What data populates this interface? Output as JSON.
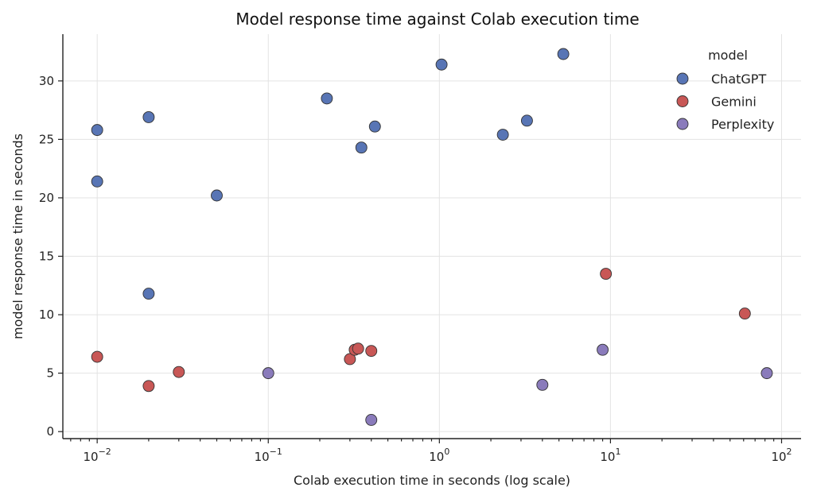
{
  "chart_data": {
    "type": "scatter",
    "title": "Model response time against Colab execution time",
    "xlabel": "Colab execution time in seconds  (log scale)",
    "ylabel": "model response time in seconds",
    "xscale": "log",
    "xlim": [
      0.0063,
      130
    ],
    "ylim": [
      -0.6,
      34
    ],
    "x_ticks": [
      {
        "value": 0.01,
        "base": "10",
        "exp": "−2"
      },
      {
        "value": 0.1,
        "base": "10",
        "exp": "−1"
      },
      {
        "value": 1,
        "base": "10",
        "exp": "0"
      },
      {
        "value": 10,
        "base": "10",
        "exp": "1"
      },
      {
        "value": 100,
        "base": "10",
        "exp": "2"
      }
    ],
    "y_ticks": [
      0,
      5,
      10,
      15,
      20,
      25,
      30
    ],
    "grid": true,
    "legend": {
      "title": "model",
      "position": "top-right"
    },
    "series": [
      {
        "name": "ChatGPT",
        "color": "#5875b5",
        "points": [
          {
            "x": 0.01,
            "y": 25.8
          },
          {
            "x": 0.01,
            "y": 21.4
          },
          {
            "x": 0.02,
            "y": 26.9
          },
          {
            "x": 0.02,
            "y": 11.8
          },
          {
            "x": 0.05,
            "y": 20.2
          },
          {
            "x": 0.22,
            "y": 28.5
          },
          {
            "x": 0.35,
            "y": 24.3
          },
          {
            "x": 0.42,
            "y": 26.1
          },
          {
            "x": 1.03,
            "y": 31.4
          },
          {
            "x": 2.35,
            "y": 25.4
          },
          {
            "x": 3.25,
            "y": 26.6
          },
          {
            "x": 5.3,
            "y": 32.3
          }
        ]
      },
      {
        "name": "Gemini",
        "color": "#c85756",
        "points": [
          {
            "x": 0.01,
            "y": 6.4
          },
          {
            "x": 0.02,
            "y": 3.9
          },
          {
            "x": 0.03,
            "y": 5.1
          },
          {
            "x": 0.3,
            "y": 6.2
          },
          {
            "x": 0.32,
            "y": 7.0
          },
          {
            "x": 0.335,
            "y": 7.1
          },
          {
            "x": 0.4,
            "y": 6.9
          },
          {
            "x": 9.4,
            "y": 13.5
          },
          {
            "x": 61,
            "y": 10.1
          }
        ]
      },
      {
        "name": "Perplexity",
        "color": "#8a7bbb",
        "points": [
          {
            "x": 0.1,
            "y": 5.0
          },
          {
            "x": 0.4,
            "y": 1.0
          },
          {
            "x": 4.0,
            "y": 4.0
          },
          {
            "x": 9.0,
            "y": 7.0
          },
          {
            "x": 82,
            "y": 5.0
          }
        ]
      }
    ]
  }
}
